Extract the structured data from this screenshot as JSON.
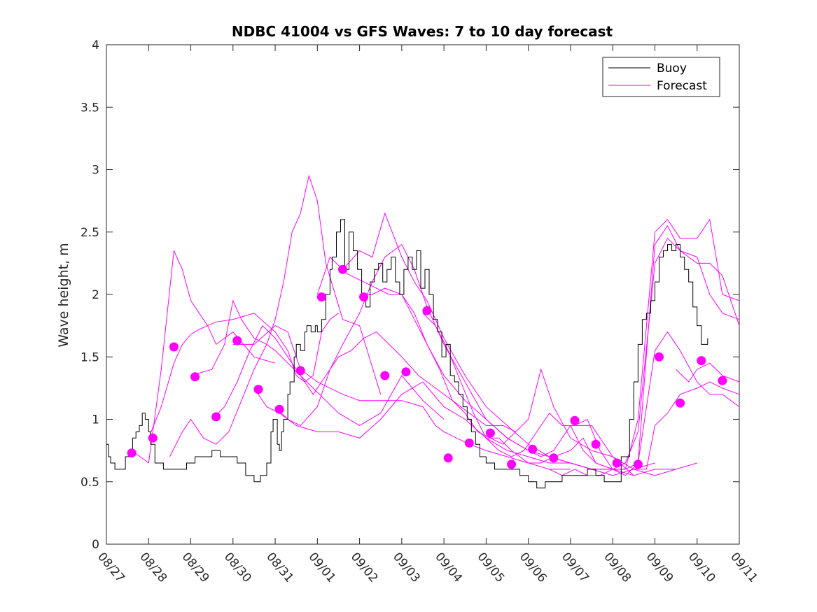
{
  "chart_data": {
    "type": "line",
    "title": "NDBC 41004 vs GFS Waves: 7 to 10 day forecast",
    "xlabel": "",
    "ylabel": "Wave height, m",
    "ylim": [
      0,
      4
    ],
    "xlim": [
      0,
      15
    ],
    "x_tick_labels": [
      "08/27",
      "08/28",
      "08/29",
      "08/30",
      "08/31",
      "09/01",
      "09/02",
      "09/03",
      "09/04",
      "09/05",
      "09/06",
      "09/07",
      "09/08",
      "09/09",
      "09/10",
      "09/11"
    ],
    "y_ticks": [
      0,
      0.5,
      1,
      1.5,
      2,
      2.5,
      3,
      3.5,
      4
    ],
    "y_tick_labels": [
      "0",
      "0.5",
      "1",
      "1.5",
      "2",
      "2.5",
      "3",
      "3.5",
      "4"
    ],
    "legend": {
      "position": "top-right",
      "entries": [
        "Buoy",
        "Forecast"
      ]
    },
    "colors": {
      "buoy": "#000000",
      "forecast": "#ff00ff"
    },
    "buoy": {
      "x": [
        0,
        0.05,
        0.1,
        0.2,
        0.35,
        0.45,
        0.55,
        0.62,
        0.7,
        0.78,
        0.85,
        0.92,
        1.0,
        1.05,
        1.15,
        1.35,
        1.6,
        1.9,
        2.1,
        2.3,
        2.5,
        2.7,
        2.9,
        3.0,
        3.1,
        3.3,
        3.5,
        3.65,
        3.8,
        3.9,
        3.95,
        4.05,
        4.1,
        4.15,
        4.2,
        4.3,
        4.35,
        4.45,
        4.5,
        4.6,
        4.7,
        4.75,
        4.85,
        4.95,
        5.0,
        5.1,
        5.2,
        5.3,
        5.35,
        5.45,
        5.55,
        5.65,
        5.75,
        5.85,
        5.95,
        6.05,
        6.15,
        6.25,
        6.35,
        6.45,
        6.55,
        6.65,
        6.75,
        6.85,
        6.95,
        7.05,
        7.15,
        7.25,
        7.35,
        7.45,
        7.55,
        7.65,
        7.75,
        7.85,
        7.95,
        8.05,
        8.15,
        8.25,
        8.35,
        8.45,
        8.55,
        8.65,
        8.75,
        8.85,
        9.0,
        9.2,
        9.4,
        9.6,
        9.8,
        10.0,
        10.2,
        10.4,
        10.6,
        10.8,
        11.0,
        11.2,
        11.4,
        11.6,
        11.8,
        12.0,
        12.2,
        12.4,
        12.5,
        12.6,
        12.7,
        12.8,
        12.9,
        13.0,
        13.1,
        13.2,
        13.3,
        13.4,
        13.5,
        13.6,
        13.7,
        13.8,
        13.9,
        14.0,
        14.1,
        14.2,
        14.25
      ],
      "values": [
        0.8,
        0.7,
        0.65,
        0.6,
        0.6,
        0.7,
        0.75,
        0.85,
        0.9,
        0.95,
        1.05,
        1.0,
        0.9,
        0.8,
        0.65,
        0.6,
        0.6,
        0.65,
        0.7,
        0.7,
        0.75,
        0.7,
        0.7,
        0.7,
        0.65,
        0.55,
        0.5,
        0.55,
        0.65,
        0.9,
        1.0,
        0.8,
        0.75,
        0.9,
        1.0,
        1.2,
        1.3,
        1.5,
        1.6,
        1.55,
        1.7,
        1.75,
        1.7,
        1.75,
        1.7,
        1.8,
        2.0,
        2.2,
        2.3,
        2.5,
        2.6,
        2.2,
        2.5,
        2.35,
        2.2,
        2.0,
        1.9,
        2.1,
        2.2,
        2.25,
        2.1,
        2.2,
        2.3,
        2.1,
        2.0,
        2.2,
        2.3,
        2.2,
        2.35,
        2.05,
        2.2,
        2.0,
        1.8,
        1.7,
        1.5,
        1.6,
        1.35,
        1.3,
        1.2,
        1.1,
        1.0,
        0.9,
        0.8,
        0.7,
        0.65,
        0.6,
        0.6,
        0.6,
        0.55,
        0.5,
        0.45,
        0.5,
        0.5,
        0.55,
        0.55,
        0.55,
        0.6,
        0.55,
        0.5,
        0.5,
        0.7,
        1.0,
        1.3,
        1.6,
        1.8,
        1.85,
        1.95,
        2.1,
        2.3,
        2.35,
        2.4,
        2.35,
        2.4,
        2.3,
        2.2,
        2.1,
        1.9,
        1.75,
        1.6,
        1.6,
        1.65
      ],
      "x_range": [
        0,
        14.25
      ]
    },
    "series": [
      {
        "name": "Forecast",
        "x": [
          0.6,
          0.8,
          1.0,
          1.3,
          1.6,
          1.8,
          2.0,
          2.2,
          2.4,
          2.6,
          3.0,
          3.5,
          4.0
        ],
        "values": [
          0.75,
          0.7,
          0.65,
          1.4,
          2.35,
          2.2,
          1.95,
          1.85,
          1.75,
          1.6,
          1.7,
          1.5,
          1.45
        ]
      },
      {
        "name": "Forecast",
        "x": [
          1.0,
          1.3,
          1.6,
          1.8,
          2.0,
          2.2,
          2.4,
          2.6,
          3.0,
          3.5,
          4.0,
          4.3,
          4.5,
          4.7,
          4.9,
          5.1,
          5.3,
          5.5
        ],
        "values": [
          0.85,
          1.1,
          1.45,
          1.6,
          1.68,
          1.72,
          1.75,
          1.78,
          1.8,
          1.85,
          1.7,
          1.55,
          1.35,
          1.3,
          1.35,
          1.7,
          1.8,
          1.85
        ]
      },
      {
        "name": "Forecast",
        "x": [
          1.5,
          1.8,
          2.0,
          2.3,
          2.6,
          2.9,
          3.2,
          3.5,
          3.8,
          4.0,
          4.2,
          4.4,
          4.6,
          4.8,
          5.0,
          5.2,
          5.6,
          6.0,
          6.5
        ],
        "values": [
          0.7,
          0.9,
          1.0,
          0.85,
          0.8,
          0.9,
          1.15,
          1.4,
          1.6,
          1.8,
          2.1,
          2.5,
          2.65,
          2.95,
          2.75,
          2.25,
          1.8,
          1.75,
          1.2
        ]
      },
      {
        "name": "Forecast",
        "x": [
          2.0,
          2.5,
          2.8,
          3.0,
          3.2,
          3.5,
          3.8,
          4.0,
          4.3,
          4.6,
          4.9,
          5.2,
          5.5,
          6.0,
          6.5,
          7.0,
          7.5,
          8.0
        ],
        "values": [
          1.35,
          1.4,
          1.6,
          1.95,
          1.8,
          1.65,
          1.6,
          1.55,
          1.45,
          1.35,
          1.25,
          1.15,
          1.05,
          0.95,
          1.05,
          1.35,
          1.15,
          1.0
        ]
      },
      {
        "name": "Forecast",
        "x": [
          2.5,
          2.8,
          3.1,
          3.4,
          3.7,
          4.0,
          4.3,
          4.6,
          4.9,
          5.2,
          5.5,
          5.8,
          6.1,
          6.4,
          6.7,
          7.0,
          7.4,
          7.8,
          8.2,
          8.6,
          9.0,
          9.4,
          9.7
        ],
        "values": [
          1.0,
          1.1,
          1.3,
          1.55,
          1.75,
          1.65,
          1.5,
          1.35,
          1.2,
          1.35,
          1.5,
          1.55,
          1.65,
          1.7,
          1.6,
          1.5,
          1.35,
          1.25,
          1.15,
          1.05,
          0.95,
          0.95,
          0.9
        ]
      },
      {
        "name": "Forecast",
        "x": [
          3.0,
          3.5,
          4.0,
          4.3,
          4.6,
          5.0,
          5.3,
          5.6,
          6.0,
          6.5,
          7.0,
          7.5,
          7.8,
          8.0,
          8.3,
          8.6,
          9.0,
          9.5,
          10.0,
          10.5,
          11.0
        ],
        "values": [
          1.6,
          1.6,
          1.75,
          1.7,
          1.4,
          1.3,
          1.25,
          1.2,
          1.15,
          1.15,
          1.15,
          1.1,
          0.95,
          0.9,
          0.85,
          0.8,
          0.75,
          0.7,
          0.65,
          0.6,
          0.6
        ]
      },
      {
        "name": "Forecast",
        "x": [
          3.5,
          3.8,
          4.1,
          4.5,
          5.0,
          5.5,
          6.0,
          6.5,
          7.0,
          7.5,
          8.0,
          8.5,
          9.0,
          9.5,
          10.0,
          10.5,
          11.0,
          11.5,
          12.0
        ],
        "values": [
          1.25,
          1.1,
          1.05,
          0.95,
          0.9,
          0.9,
          0.85,
          1.0,
          1.2,
          1.3,
          1.1,
          1.0,
          0.85,
          0.75,
          0.7,
          0.65,
          0.65,
          0.6,
          0.6
        ]
      },
      {
        "name": "Forecast",
        "x": [
          4.0,
          4.3,
          4.6,
          5.0,
          5.3,
          5.6,
          6.0,
          6.3,
          6.6,
          7.0,
          7.3,
          7.6,
          8.0,
          8.5,
          9.0,
          9.5,
          10.0,
          10.5,
          11.0,
          11.5,
          12.0,
          12.5
        ],
        "values": [
          1.1,
          1.0,
          0.95,
          1.1,
          1.4,
          1.6,
          1.85,
          2.1,
          2.3,
          2.4,
          2.2,
          1.9,
          1.6,
          1.3,
          1.0,
          0.85,
          0.75,
          0.7,
          0.65,
          0.6,
          0.6,
          0.55
        ]
      },
      {
        "name": "Forecast",
        "x": [
          5.0,
          5.3,
          5.6,
          6.0,
          6.3,
          6.6,
          7.0,
          7.3,
          7.6,
          8.0,
          8.5,
          9.0,
          9.5,
          10.0,
          10.5,
          11.0,
          11.5,
          12.0,
          12.5,
          13.0
        ],
        "values": [
          2.0,
          2.3,
          2.2,
          2.35,
          2.3,
          2.65,
          2.3,
          2.1,
          1.95,
          1.65,
          1.35,
          1.1,
          0.95,
          0.8,
          0.7,
          0.65,
          0.6,
          0.55,
          0.6,
          0.65
        ]
      },
      {
        "name": "Forecast",
        "x": [
          5.5,
          5.8,
          6.1,
          6.4,
          6.7,
          7.0,
          7.3,
          7.6,
          8.0,
          8.5,
          9.0,
          9.5,
          10.0,
          10.3,
          10.6,
          11.0,
          11.5,
          12.0,
          12.5,
          13.0,
          13.5
        ],
        "values": [
          2.2,
          2.15,
          2.1,
          2.05,
          2.0,
          2.0,
          1.8,
          1.6,
          1.35,
          1.15,
          1.0,
          0.85,
          0.75,
          0.7,
          0.75,
          0.95,
          0.95,
          0.7,
          0.6,
          0.55,
          0.6
        ]
      },
      {
        "name": "Forecast",
        "x": [
          6.0,
          6.3,
          6.6,
          7.0,
          7.3,
          7.6,
          7.9,
          8.2,
          8.5,
          8.8,
          9.1,
          9.4,
          9.7,
          10.0,
          10.3,
          10.6,
          11.0,
          11.5,
          12.0,
          12.5,
          13.0,
          13.5,
          14.0
        ],
        "values": [
          2.0,
          2.0,
          2.05,
          2.0,
          1.85,
          1.6,
          1.4,
          1.15,
          1.05,
          0.9,
          0.85,
          0.8,
          0.9,
          1.0,
          1.4,
          1.1,
          0.85,
          0.75,
          0.7,
          0.55,
          0.6,
          0.6,
          0.65
        ]
      },
      {
        "name": "Forecast",
        "x": [
          7.5,
          7.8,
          8.1,
          8.4,
          8.7,
          9.0,
          9.3,
          9.6,
          9.9,
          10.2,
          10.5,
          10.8,
          11.1,
          11.4,
          11.7,
          12.0,
          12.3,
          12.6,
          13.0,
          13.3,
          13.6,
          14.0,
          14.3,
          14.6,
          15.0
        ],
        "values": [
          1.85,
          1.75,
          1.55,
          1.3,
          1.05,
          0.85,
          0.75,
          0.7,
          0.75,
          0.9,
          1.05,
          0.95,
          0.95,
          1.0,
          0.75,
          0.6,
          0.65,
          0.9,
          2.25,
          2.45,
          2.35,
          2.3,
          2.0,
          1.85,
          1.8
        ]
      },
      {
        "name": "Forecast",
        "x": [
          9.0,
          9.3,
          9.6,
          10.0,
          10.3,
          10.6,
          11.0,
          11.3,
          11.6,
          12.0,
          12.3,
          12.6,
          13.0,
          13.3,
          13.6,
          14.0,
          14.3,
          14.6,
          15.0
        ],
        "values": [
          0.85,
          0.85,
          0.75,
          0.65,
          0.65,
          0.7,
          0.75,
          0.85,
          0.65,
          0.6,
          0.6,
          0.65,
          2.4,
          2.55,
          2.35,
          2.25,
          2.25,
          2.15,
          1.75
        ]
      },
      {
        "name": "Forecast",
        "x": [
          10.5,
          10.8,
          11.1,
          11.4,
          11.7,
          12.0,
          12.3,
          12.6,
          13.0,
          13.3,
          13.6,
          14.0,
          14.3,
          14.6,
          15.0
        ],
        "values": [
          0.6,
          0.55,
          0.6,
          0.55,
          0.55,
          0.6,
          0.6,
          1.0,
          2.5,
          2.6,
          2.45,
          2.45,
          2.6,
          2.0,
          1.95
        ]
      },
      {
        "name": "Forecast",
        "x": [
          11.0,
          11.3,
          11.6,
          12.0,
          12.3,
          12.6,
          13.0,
          13.3,
          13.6,
          14.0,
          14.3,
          14.6,
          15.0
        ],
        "values": [
          0.95,
          0.75,
          0.65,
          0.6,
          0.55,
          0.65,
          1.55,
          1.7,
          1.55,
          1.3,
          1.2,
          1.2,
          1.1
        ]
      },
      {
        "name": "Forecast",
        "x": [
          12.5,
          12.8,
          13.0,
          13.3,
          13.6,
          14.0,
          14.3,
          14.6,
          15.0
        ],
        "values": [
          0.6,
          0.6,
          0.95,
          1.05,
          1.2,
          1.25,
          1.3,
          1.25,
          1.2
        ]
      },
      {
        "name": "Forecast",
        "x": [
          13.5,
          13.8,
          14.0,
          14.3,
          14.6,
          15.0
        ],
        "values": [
          1.4,
          1.3,
          1.4,
          1.45,
          1.35,
          1.3
        ]
      }
    ],
    "forecast_markers": {
      "x": [
        0.6,
        1.1,
        1.6,
        2.1,
        2.6,
        3.1,
        3.6,
        4.1,
        4.6,
        5.1,
        5.6,
        6.1,
        6.6,
        7.1,
        7.6,
        8.1,
        8.6,
        9.1,
        9.6,
        10.1,
        10.6,
        11.1,
        11.6,
        12.1,
        12.6,
        13.1,
        13.6,
        14.1,
        14.6
      ],
      "values": [
        0.73,
        0.85,
        1.58,
        1.34,
        1.02,
        1.63,
        1.24,
        1.08,
        1.39,
        1.98,
        2.2,
        1.98,
        1.35,
        1.38,
        1.87,
        0.69,
        0.81,
        0.89,
        0.64,
        0.76,
        0.69,
        0.99,
        0.8,
        0.65,
        0.64,
        1.5,
        1.13,
        1.47,
        1.31
      ]
    }
  }
}
